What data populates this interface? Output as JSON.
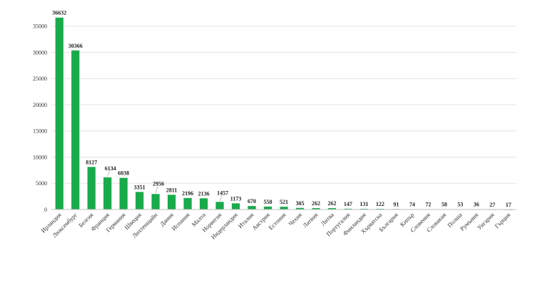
{
  "chart_data": {
    "type": "bar",
    "categories": [
      "Ирландия",
      "Люксембург",
      "Белгия",
      "Франция",
      "Германия",
      "Швеция",
      "Лихтенщайн",
      "Дания",
      "Испания",
      "Малта",
      "Норвегия",
      "Нидерландия",
      "Италия",
      "Австрия",
      "Естония",
      "Чехия",
      "Латвия",
      "Литва",
      "Португалия",
      "Финландия",
      "Хърватска",
      "България",
      "Кипър",
      "Словения",
      "Словакия",
      "Полша",
      "Румъния",
      "Унгария",
      "Гърция"
    ],
    "values": [
      36632,
      30366,
      8127,
      6134,
      6038,
      3351,
      2956,
      2811,
      2196,
      2136,
      1457,
      1173,
      670,
      558,
      521,
      305,
      262,
      262,
      147,
      131,
      122,
      91,
      74,
      72,
      58,
      53,
      36,
      27,
      17
    ],
    "value_labels": [
      "36632",
      "30366",
      "8127",
      "6134",
      "6038",
      "3351",
      "2956",
      "2811",
      "2196",
      "2136",
      "1457",
      "1173",
      "670",
      "558",
      "521",
      "305",
      "262",
      "262",
      "147",
      "131",
      "122",
      "91",
      "74",
      "72",
      "58",
      "53",
      "36",
      "27",
      "17"
    ],
    "yticks": [
      "0",
      "5000",
      "10000",
      "15000",
      "20000",
      "25000",
      "30000",
      "35000"
    ],
    "ylim": [
      0,
      37000
    ],
    "title": "",
    "xlabel": "",
    "ylabel": "",
    "grid": true,
    "bar_color": "#1aaa4b"
  }
}
